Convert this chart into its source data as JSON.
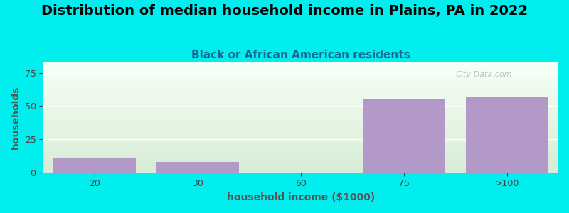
{
  "title": "Distribution of median household income in Plains, PA in 2022",
  "subtitle": "Black or African American residents",
  "xlabel": "household income ($1000)",
  "ylabel": "households",
  "categories": [
    "20",
    "30",
    "60",
    "75",
    ">100"
  ],
  "values": [
    11,
    8,
    0,
    55,
    57
  ],
  "bar_color": "#b399c8",
  "bar_width": 0.8,
  "ylim": [
    0,
    83
  ],
  "yticks": [
    0,
    25,
    50,
    75
  ],
  "background_color": "#00EEEE",
  "grad_color_bottom": "#d6ecd6",
  "grad_color_top": "#f7fff7",
  "title_fontsize": 14,
  "subtitle_fontsize": 11,
  "axis_label_fontsize": 10,
  "watermark": "City-Data.com"
}
